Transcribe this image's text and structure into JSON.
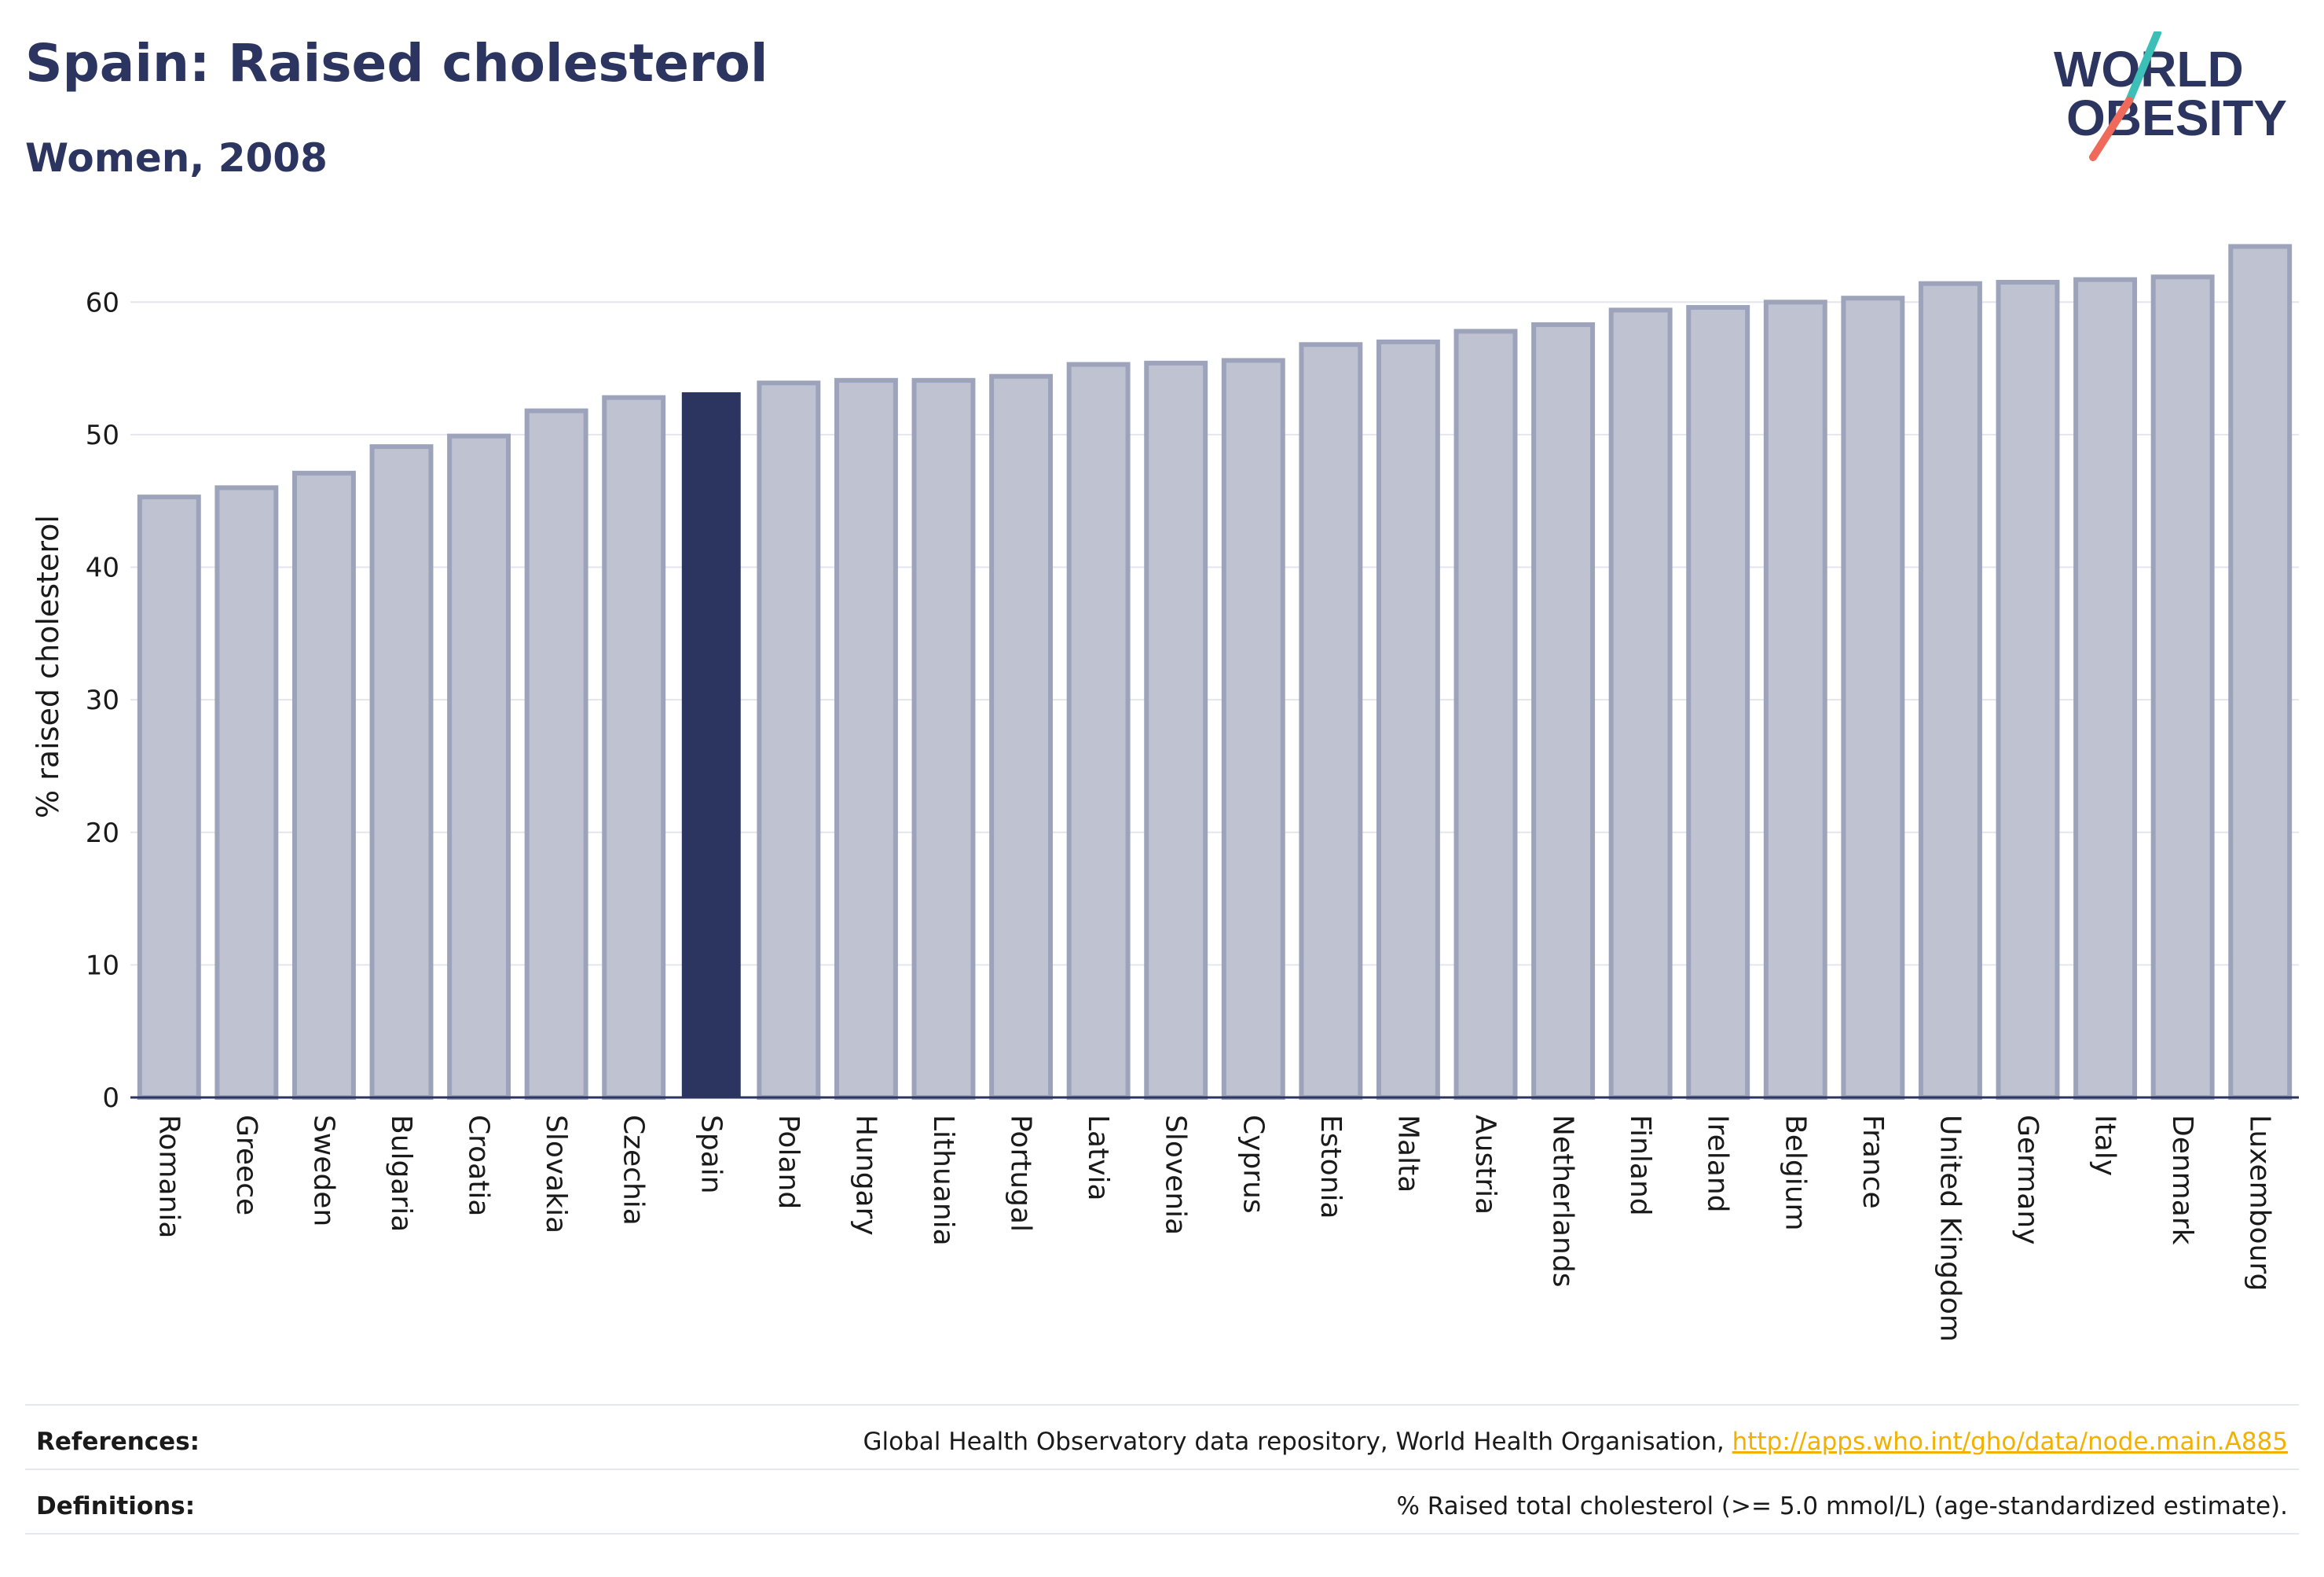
{
  "title": "Spain: Raised cholesterol",
  "subtitle": "Women, 2008",
  "logo": {
    "line1": "WORLD",
    "line2": "OBESITY"
  },
  "colors": {
    "highlight": "#2c3560",
    "bar_fill": "#bfc3d1",
    "bar_stroke": "#9ca3bb",
    "grid": "#e4e6ee",
    "logo_teal": "#3bbfb6",
    "logo_coral": "#ef6a5a"
  },
  "chart_data": {
    "type": "bar",
    "ylabel": "% raised cholesterol",
    "xlabel": "",
    "ylim": [
      0,
      65
    ],
    "yticks": [
      0,
      10,
      20,
      30,
      40,
      50,
      60
    ],
    "grid": true,
    "highlight": "Spain",
    "categories": [
      "Romania",
      "Greece",
      "Sweden",
      "Bulgaria",
      "Croatia",
      "Slovakia",
      "Czechia",
      "Spain",
      "Poland",
      "Hungary",
      "Lithuania",
      "Portugal",
      "Latvia",
      "Slovenia",
      "Cyprus",
      "Estonia",
      "Malta",
      "Austria",
      "Netherlands",
      "Finland",
      "Ireland",
      "Belgium",
      "France",
      "United Kingdom",
      "Germany",
      "Italy",
      "Denmark",
      "Luxembourg"
    ],
    "values": [
      45.3,
      46.0,
      47.1,
      49.1,
      49.9,
      51.8,
      52.8,
      53.2,
      53.9,
      54.1,
      54.1,
      54.4,
      55.3,
      55.4,
      55.6,
      56.8,
      57.0,
      57.8,
      58.3,
      59.4,
      59.6,
      60.0,
      60.3,
      61.4,
      61.5,
      61.7,
      61.9,
      64.2
    ]
  },
  "footer": {
    "references_label": "References:",
    "references_text": "Global Health Observatory data repository, World Health Organisation,",
    "references_link": "http://apps.who.int/gho/data/node.main.A885",
    "definitions_label": "Definitions:",
    "definitions_text": "% Raised total cholesterol (>= 5.0 mmol/L) (age-standardized estimate)."
  }
}
